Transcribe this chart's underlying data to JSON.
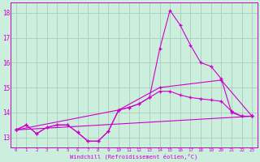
{
  "bg_color": "#cceedd",
  "grid_color": "#aaccbb",
  "line_color": "#cc00cc",
  "xlim": [
    -0.5,
    23.5
  ],
  "ylim": [
    12.6,
    18.4
  ],
  "xticks": [
    0,
    1,
    2,
    3,
    4,
    5,
    6,
    7,
    8,
    9,
    10,
    11,
    12,
    13,
    14,
    15,
    16,
    17,
    18,
    19,
    20,
    21,
    22,
    23
  ],
  "yticks": [
    13,
    14,
    15,
    16,
    17,
    18
  ],
  "xlabel": "Windchill (Refroidissement éolien,°C)",
  "line1_x": [
    0,
    1,
    2,
    3,
    4,
    5,
    6,
    7,
    8,
    9,
    10,
    11,
    12,
    13,
    14,
    15,
    16,
    17,
    18,
    19,
    20,
    21,
    22,
    23
  ],
  "line1_y": [
    13.3,
    13.5,
    13.15,
    13.4,
    13.5,
    13.5,
    13.2,
    12.85,
    12.85,
    13.25,
    14.1,
    14.2,
    14.35,
    14.6,
    16.55,
    18.1,
    17.5,
    16.7,
    16.0,
    15.85,
    15.35,
    14.0,
    13.85,
    13.85
  ],
  "line2_x": [
    0,
    1,
    2,
    3,
    4,
    5,
    6,
    7,
    8,
    9,
    10,
    11,
    12,
    13,
    14,
    15,
    16,
    17,
    18,
    19,
    20,
    21,
    22,
    23
  ],
  "line2_y": [
    13.3,
    13.5,
    13.15,
    13.4,
    13.5,
    13.5,
    13.2,
    12.85,
    12.85,
    13.25,
    14.1,
    14.2,
    14.35,
    14.6,
    14.85,
    14.85,
    14.7,
    14.6,
    14.55,
    14.5,
    14.45,
    14.05,
    13.85,
    13.85
  ],
  "line3_x": [
    0,
    23
  ],
  "line3_y": [
    13.3,
    13.85
  ],
  "line4_x": [
    0,
    10,
    14,
    20,
    23
  ],
  "line4_y": [
    13.3,
    14.1,
    15.0,
    15.3,
    13.85
  ]
}
